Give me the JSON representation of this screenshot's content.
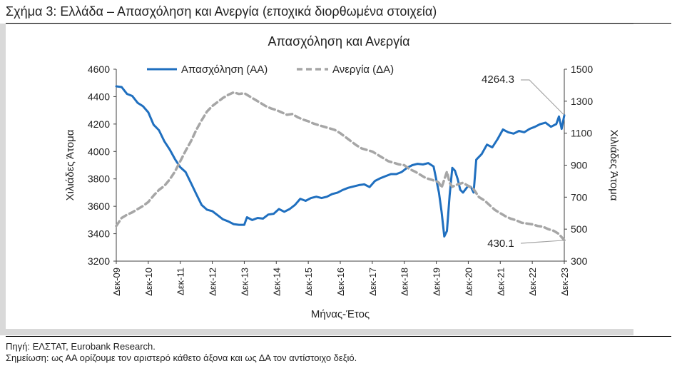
{
  "figure": {
    "title": "Σχήμα 3: Ελλάδα – Απασχόληση και Ανεργία (εποχικά διορθωμένα στοιχεία)",
    "source": "Πηγή: ΕΛΣΤΑΤ, Eurobank Research.",
    "note": "Σημείωση: ως ΑΑ ορίζουμε τον αριστερό κάθετο άξονα και ως ΔΑ τον αντίστοιχο δεξιό."
  },
  "colors": {
    "employment": "#1f6fbf",
    "unemployment": "#a6a6a6",
    "axis": "#404040",
    "panel": "#d9d9d9"
  },
  "chart_data": {
    "type": "line",
    "title": "Απασχόληση και Ανεργία",
    "xlabel": "Μήνας-Έτος",
    "ylabel_left": "Χιλιάδες Άτομα",
    "ylabel_right": "Χιλιάδες Άτομα",
    "x_tick_labels": [
      "Δεκ-09",
      "Δεκ-10",
      "Δεκ-11",
      "Δεκ-12",
      "Δεκ-13",
      "Δεκ-14",
      "Δεκ-15",
      "Δεκ-16",
      "Δεκ-17",
      "Δεκ-18",
      "Δεκ-19",
      "Δεκ-20",
      "Δεκ-21",
      "Δεκ-22",
      "Δεκ-23"
    ],
    "x_range": [
      "2009-12",
      "2023-12"
    ],
    "ylim_left": [
      3200,
      4600
    ],
    "yticks_left": [
      3200,
      3400,
      3600,
      3800,
      4000,
      4200,
      4400,
      4600
    ],
    "ylim_right": [
      300,
      1500
    ],
    "yticks_right": [
      300,
      500,
      700,
      900,
      1100,
      1300,
      1500
    ],
    "grid": false,
    "legend_position": "top-left",
    "series": [
      {
        "name": "Απασχόληση (ΑΑ)",
        "axis": "left",
        "style": "solid",
        "points": [
          [
            "2009-12",
            4475
          ],
          [
            "2010-02",
            4470
          ],
          [
            "2010-04",
            4420
          ],
          [
            "2010-06",
            4405
          ],
          [
            "2010-08",
            4355
          ],
          [
            "2010-10",
            4330
          ],
          [
            "2010-12",
            4285
          ],
          [
            "2011-02",
            4195
          ],
          [
            "2011-04",
            4155
          ],
          [
            "2011-06",
            4075
          ],
          [
            "2011-08",
            4015
          ],
          [
            "2011-10",
            3945
          ],
          [
            "2011-12",
            3885
          ],
          [
            "2012-02",
            3850
          ],
          [
            "2012-04",
            3770
          ],
          [
            "2012-06",
            3690
          ],
          [
            "2012-08",
            3610
          ],
          [
            "2012-10",
            3575
          ],
          [
            "2012-12",
            3565
          ],
          [
            "2013-02",
            3535
          ],
          [
            "2013-04",
            3505
          ],
          [
            "2013-06",
            3490
          ],
          [
            "2013-08",
            3470
          ],
          [
            "2013-10",
            3465
          ],
          [
            "2013-12",
            3465
          ],
          [
            "2014-01",
            3520
          ],
          [
            "2014-03",
            3500
          ],
          [
            "2014-05",
            3515
          ],
          [
            "2014-07",
            3510
          ],
          [
            "2014-09",
            3540
          ],
          [
            "2014-11",
            3545
          ],
          [
            "2015-01",
            3580
          ],
          [
            "2015-03",
            3560
          ],
          [
            "2015-05",
            3580
          ],
          [
            "2015-07",
            3610
          ],
          [
            "2015-09",
            3655
          ],
          [
            "2015-11",
            3640
          ],
          [
            "2016-01",
            3660
          ],
          [
            "2016-03",
            3670
          ],
          [
            "2016-05",
            3660
          ],
          [
            "2016-07",
            3670
          ],
          [
            "2016-09",
            3690
          ],
          [
            "2016-11",
            3700
          ],
          [
            "2017-01",
            3720
          ],
          [
            "2017-03",
            3735
          ],
          [
            "2017-05",
            3745
          ],
          [
            "2017-07",
            3755
          ],
          [
            "2017-09",
            3760
          ],
          [
            "2017-11",
            3740
          ],
          [
            "2018-01",
            3785
          ],
          [
            "2018-03",
            3805
          ],
          [
            "2018-05",
            3820
          ],
          [
            "2018-07",
            3835
          ],
          [
            "2018-09",
            3835
          ],
          [
            "2018-11",
            3850
          ],
          [
            "2019-01",
            3880
          ],
          [
            "2019-03",
            3900
          ],
          [
            "2019-05",
            3910
          ],
          [
            "2019-07",
            3905
          ],
          [
            "2019-09",
            3915
          ],
          [
            "2019-11",
            3890
          ],
          [
            "2020-01",
            3700
          ],
          [
            "2020-02",
            3560
          ],
          [
            "2020-03",
            3380
          ],
          [
            "2020-04",
            3420
          ],
          [
            "2020-05",
            3680
          ],
          [
            "2020-06",
            3880
          ],
          [
            "2020-07",
            3860
          ],
          [
            "2020-08",
            3800
          ],
          [
            "2020-09",
            3720
          ],
          [
            "2020-10",
            3700
          ],
          [
            "2020-12",
            3750
          ],
          [
            "2021-01",
            3740
          ],
          [
            "2021-02",
            3700
          ],
          [
            "2021-03",
            3940
          ],
          [
            "2021-05",
            3980
          ],
          [
            "2021-07",
            4050
          ],
          [
            "2021-09",
            4030
          ],
          [
            "2021-11",
            4090
          ],
          [
            "2022-01",
            4160
          ],
          [
            "2022-03",
            4140
          ],
          [
            "2022-05",
            4130
          ],
          [
            "2022-07",
            4150
          ],
          [
            "2022-09",
            4140
          ],
          [
            "2022-11",
            4165
          ],
          [
            "2023-01",
            4180
          ],
          [
            "2023-03",
            4200
          ],
          [
            "2023-05",
            4210
          ],
          [
            "2023-07",
            4180
          ],
          [
            "2023-09",
            4200
          ],
          [
            "2023-10",
            4255
          ],
          [
            "2023-11",
            4165
          ],
          [
            "2023-12",
            4264.3
          ]
        ]
      },
      {
        "name": "Ανεργία (ΔΑ)",
        "axis": "right",
        "style": "dashed",
        "points": [
          [
            "2009-12",
            520
          ],
          [
            "2010-02",
            570
          ],
          [
            "2010-04",
            590
          ],
          [
            "2010-06",
            605
          ],
          [
            "2010-08",
            625
          ],
          [
            "2010-10",
            645
          ],
          [
            "2010-12",
            670
          ],
          [
            "2011-02",
            710
          ],
          [
            "2011-04",
            745
          ],
          [
            "2011-06",
            770
          ],
          [
            "2011-08",
            810
          ],
          [
            "2011-10",
            860
          ],
          [
            "2011-12",
            925
          ],
          [
            "2012-02",
            990
          ],
          [
            "2012-04",
            1050
          ],
          [
            "2012-06",
            1120
          ],
          [
            "2012-08",
            1180
          ],
          [
            "2012-10",
            1235
          ],
          [
            "2012-12",
            1270
          ],
          [
            "2013-02",
            1295
          ],
          [
            "2013-04",
            1320
          ],
          [
            "2013-06",
            1340
          ],
          [
            "2013-08",
            1355
          ],
          [
            "2013-10",
            1345
          ],
          [
            "2013-12",
            1350
          ],
          [
            "2014-02",
            1330
          ],
          [
            "2014-04",
            1310
          ],
          [
            "2014-06",
            1290
          ],
          [
            "2014-08",
            1270
          ],
          [
            "2014-10",
            1255
          ],
          [
            "2014-12",
            1245
          ],
          [
            "2015-02",
            1230
          ],
          [
            "2015-04",
            1215
          ],
          [
            "2015-06",
            1220
          ],
          [
            "2015-08",
            1200
          ],
          [
            "2015-10",
            1185
          ],
          [
            "2015-12",
            1175
          ],
          [
            "2016-02",
            1160
          ],
          [
            "2016-04",
            1150
          ],
          [
            "2016-06",
            1140
          ],
          [
            "2016-08",
            1130
          ],
          [
            "2016-10",
            1120
          ],
          [
            "2016-12",
            1100
          ],
          [
            "2017-02",
            1075
          ],
          [
            "2017-04",
            1050
          ],
          [
            "2017-06",
            1025
          ],
          [
            "2017-08",
            1005
          ],
          [
            "2017-10",
            995
          ],
          [
            "2017-12",
            985
          ],
          [
            "2018-02",
            965
          ],
          [
            "2018-04",
            945
          ],
          [
            "2018-06",
            925
          ],
          [
            "2018-08",
            915
          ],
          [
            "2018-10",
            905
          ],
          [
            "2018-12",
            900
          ],
          [
            "2019-02",
            875
          ],
          [
            "2019-04",
            860
          ],
          [
            "2019-06",
            840
          ],
          [
            "2019-08",
            820
          ],
          [
            "2019-10",
            810
          ],
          [
            "2019-12",
            800
          ],
          [
            "2020-01",
            790
          ],
          [
            "2020-02",
            760
          ],
          [
            "2020-03",
            810
          ],
          [
            "2020-04",
            860
          ],
          [
            "2020-05",
            790
          ],
          [
            "2020-06",
            765
          ],
          [
            "2020-08",
            780
          ],
          [
            "2020-10",
            790
          ],
          [
            "2020-12",
            770
          ],
          [
            "2021-02",
            750
          ],
          [
            "2021-04",
            700
          ],
          [
            "2021-06",
            680
          ],
          [
            "2021-08",
            650
          ],
          [
            "2021-10",
            620
          ],
          [
            "2021-12",
            600
          ],
          [
            "2022-02",
            580
          ],
          [
            "2022-04",
            565
          ],
          [
            "2022-06",
            555
          ],
          [
            "2022-08",
            540
          ],
          [
            "2022-10",
            535
          ],
          [
            "2022-12",
            530
          ],
          [
            "2023-02",
            520
          ],
          [
            "2023-04",
            515
          ],
          [
            "2023-06",
            500
          ],
          [
            "2023-08",
            490
          ],
          [
            "2023-10",
            470
          ],
          [
            "2023-12",
            430.1
          ]
        ]
      }
    ],
    "annotations": [
      {
        "text": "4264.3",
        "series": "Απασχόληση (ΑΑ)",
        "x": "2023-12",
        "y": 4264.3
      },
      {
        "text": "430.1",
        "series": "Ανεργία (ΔΑ)",
        "x": "2023-12",
        "y": 430.1
      }
    ]
  }
}
